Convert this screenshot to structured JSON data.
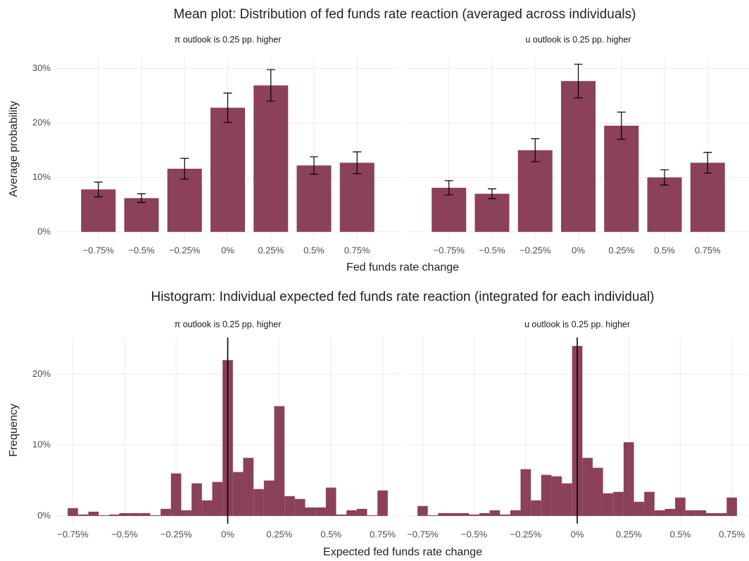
{
  "chart_data": [
    {
      "type": "bar",
      "title": "Mean plot: Distribution of fed funds rate reaction (averaged across individuals)",
      "x_label": "Fed funds rate change",
      "y_label": "Average probability",
      "categories": [
        "−0.75%",
        "−0.5%",
        "−0.25%",
        "0%",
        "0.25%",
        "0.5%",
        "0.75%"
      ],
      "ylim": [
        -1.7,
        32
      ],
      "yticks": [
        {
          "value": 0,
          "label": "0%"
        },
        {
          "value": 10,
          "label": "10%"
        },
        {
          "value": 20,
          "label": "20%"
        },
        {
          "value": 30,
          "label": "30%"
        }
      ],
      "grid": true,
      "color": "#8b4158",
      "panels": [
        {
          "title": "π outlook is 0.25 pp. higher",
          "values": [
            7.8,
            6.2,
            11.6,
            22.8,
            26.9,
            12.2,
            12.7
          ],
          "errors": [
            1.35,
            0.8,
            1.9,
            2.7,
            2.9,
            1.6,
            2.0
          ]
        },
        {
          "title": "u outlook is 0.25 pp. higher",
          "values": [
            8.1,
            7.0,
            15.0,
            27.7,
            19.5,
            10.0,
            12.7
          ],
          "errors": [
            1.3,
            0.9,
            2.1,
            3.1,
            2.5,
            1.4,
            1.9
          ]
        }
      ]
    },
    {
      "type": "histogram",
      "title": "Histogram: Individual expected fed funds rate reaction (integrated for each individual)",
      "x_label": "Expected fed funds rate change",
      "y_label": "Frequency",
      "bins": [
        -0.775,
        -0.725,
        -0.675,
        -0.625,
        -0.575,
        -0.525,
        -0.475,
        -0.425,
        -0.375,
        -0.325,
        -0.275,
        -0.225,
        -0.175,
        -0.125,
        -0.075,
        -0.025,
        0.025,
        0.075,
        0.125,
        0.175,
        0.225,
        0.275,
        0.325,
        0.375,
        0.425,
        0.475,
        0.525,
        0.575,
        0.625,
        0.675,
        0.725,
        0.775
      ],
      "xlim": [
        -0.83,
        0.83
      ],
      "xticks": [
        {
          "value": -0.75,
          "label": "−0.75%"
        },
        {
          "value": -0.5,
          "label": "−0.5%"
        },
        {
          "value": -0.25,
          "label": "−0.25%"
        },
        {
          "value": 0,
          "label": "0%"
        },
        {
          "value": 0.25,
          "label": "0.25%"
        },
        {
          "value": 0.5,
          "label": "0.5%"
        },
        {
          "value": 0.75,
          "label": "0.75%"
        }
      ],
      "ylim": [
        -1.1,
        25.2
      ],
      "yticks": [
        {
          "value": 0,
          "label": "0%"
        },
        {
          "value": 10,
          "label": "10%"
        },
        {
          "value": 20,
          "label": "20%"
        }
      ],
      "grid": true,
      "vline": 0,
      "color": "#8b4158",
      "panels": [
        {
          "title": "π outlook is 0.25 pp. higher",
          "values": [
            1.1,
            0.2,
            0.6,
            0.1,
            0.2,
            0.4,
            0.4,
            0.4,
            0.1,
            1.0,
            6.0,
            0.8,
            4.6,
            2.2,
            4.8,
            22.0,
            6.2,
            8.2,
            3.8,
            5.0,
            15.5,
            2.8,
            2.4,
            1.2,
            1.2,
            4.0,
            0.2,
            0.8,
            1.0,
            0.1,
            3.6
          ]
        },
        {
          "title": "u outlook is 0.25 pp. higher",
          "values": [
            1.4,
            0.1,
            0.4,
            0.4,
            0.4,
            0.2,
            0.4,
            0.8,
            0.2,
            0.8,
            6.6,
            2.2,
            5.8,
            5.6,
            4.6,
            24.0,
            8.2,
            6.8,
            3.2,
            3.4,
            10.4,
            2.0,
            3.4,
            0.8,
            1.0,
            2.6,
            0.8,
            0.8,
            0.4,
            0.4,
            2.6
          ]
        }
      ]
    }
  ]
}
